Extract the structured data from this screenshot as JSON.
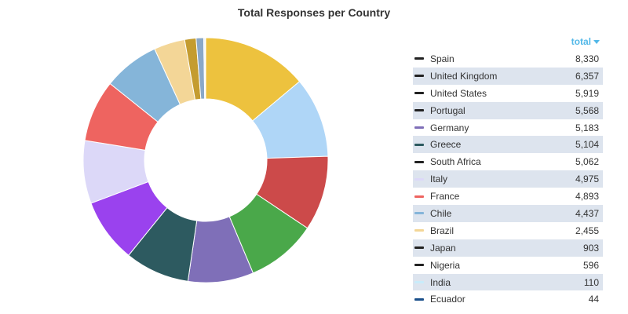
{
  "chart_data": {
    "type": "pie",
    "title": "Total Responses per Country",
    "column_header": "total",
    "categories": [
      "Spain",
      "United Kingdom",
      "United States",
      "Portugal",
      "Germany",
      "Greece",
      "South Africa",
      "Italy",
      "France",
      "Chile",
      "Brazil",
      "Japan",
      "Nigeria",
      "India",
      "Ecuador"
    ],
    "values": [
      8330,
      6357,
      5919,
      5568,
      5183,
      5104,
      5062,
      4975,
      4893,
      4437,
      2455,
      903,
      596,
      110,
      44
    ],
    "value_labels": [
      "8,330",
      "6,357",
      "5,919",
      "5,568",
      "5,183",
      "5,104",
      "5,062",
      "4,975",
      "4,893",
      "4,437",
      "2,455",
      "903",
      "596",
      "110",
      "44"
    ],
    "colors": [
      "#edc23e",
      "#afd6f7",
      "#cc4a4a",
      "#4aa84a",
      "#7f6fb8",
      "#2d5a60",
      "#9a42ee",
      "#dcd8f8",
      "#ee6460",
      "#85b5d9",
      "#f3d697",
      "#c49c30",
      "#8aa8c8",
      "#e8f2fb",
      "#f4f4f8"
    ],
    "legend_swatch_colors": [
      "#222222",
      "#222222",
      "#222222",
      "#222222",
      "#7f6fb8",
      "#2d5a60",
      "#222222",
      "#dcd8f8",
      "#ee6460",
      "#85b5d9",
      "#f3d697",
      "#222222",
      "#222222",
      "#c9ecfa",
      "#1a4f8a"
    ],
    "donut": true,
    "legend_placement": "right",
    "sort": "descending"
  }
}
